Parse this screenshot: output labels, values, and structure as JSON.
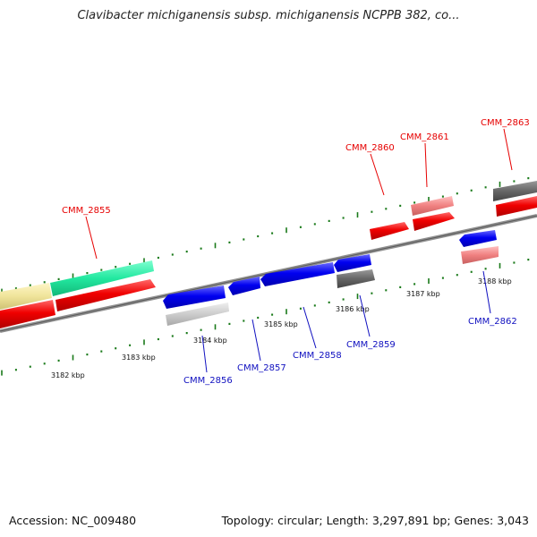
{
  "title": "Clavibacter michiganensis subsp. michiganensis NCPPB 382, co...",
  "footer": {
    "accession": "Accession: NC_009480",
    "stats": "Topology: circular; Length: 3,297,891 bp; Genes: 3,043"
  },
  "colors": {
    "forward_label": "#e60000",
    "reverse_label": "#1010c0",
    "tick": "#1a7a1a",
    "backbone": "#808080"
  },
  "scale_labels": [
    "3182 kbp",
    "3183 kbp",
    "3184 kbp",
    "3185 kbp",
    "3186 kbp",
    "3187 kbp",
    "3188 kbp"
  ],
  "features": [
    {
      "id": "CMM_2855",
      "strand": "forward",
      "color": "red",
      "label": "CMM_2855"
    },
    {
      "id": "CMM_2856",
      "strand": "reverse",
      "color": "blue",
      "label": "CMM_2856"
    },
    {
      "id": "CMM_2857",
      "strand": "reverse",
      "color": "blue",
      "label": "CMM_2857"
    },
    {
      "id": "CMM_2858",
      "strand": "reverse",
      "color": "blue",
      "label": "CMM_2858"
    },
    {
      "id": "CMM_2859",
      "strand": "reverse",
      "color": "blue",
      "label": "CMM_2859"
    },
    {
      "id": "CMM_2860",
      "strand": "forward",
      "color": "red",
      "label": "CMM_2860"
    },
    {
      "id": "CMM_2861",
      "strand": "forward",
      "color": "red",
      "label": "CMM_2861"
    },
    {
      "id": "CMM_2862",
      "strand": "reverse",
      "color": "blue",
      "label": "CMM_2862"
    },
    {
      "id": "CMM_2863",
      "strand": "forward",
      "color": "red",
      "label": "CMM_2863"
    }
  ]
}
